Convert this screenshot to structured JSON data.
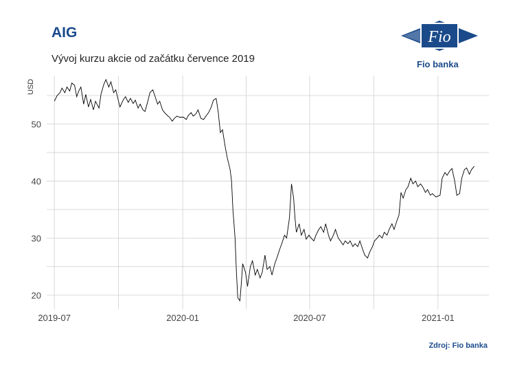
{
  "header": {
    "title": "AIG",
    "subtitle": "Vývoj kurzu akcie od začátku července 2019"
  },
  "brand": {
    "logo_mark": "Fio",
    "name": "Fio banka",
    "color": "#1a4a8a"
  },
  "footer": {
    "source": "Zdroj: Fio banka"
  },
  "chart_data": {
    "type": "line",
    "ylabel": "USD",
    "xlim": [
      "2019-06-20",
      "2021-03-15"
    ],
    "ylim": [
      17.5,
      58.5
    ],
    "y_ticks": [
      20,
      30,
      40,
      50
    ],
    "x_ticks": [
      {
        "date": "2019-07-01",
        "label": "2019-07"
      },
      {
        "date": "2020-01-01",
        "label": "2020-01"
      },
      {
        "date": "2020-07-01",
        "label": "2020-07"
      },
      {
        "date": "2021-01-01",
        "label": "2021-01"
      }
    ],
    "grid": true,
    "line_color": "#000000",
    "series": [
      {
        "points": [
          [
            "2019-07-01",
            54.0
          ],
          [
            "2019-07-05",
            55.0
          ],
          [
            "2019-07-09",
            55.5
          ],
          [
            "2019-07-12",
            56.3
          ],
          [
            "2019-07-16",
            55.5
          ],
          [
            "2019-07-19",
            56.5
          ],
          [
            "2019-07-23",
            55.8
          ],
          [
            "2019-07-26",
            57.2
          ],
          [
            "2019-07-30",
            56.8
          ],
          [
            "2019-08-02",
            54.8
          ],
          [
            "2019-08-05",
            55.8
          ],
          [
            "2019-08-08",
            56.5
          ],
          [
            "2019-08-12",
            53.5
          ],
          [
            "2019-08-15",
            55.2
          ],
          [
            "2019-08-19",
            53.0
          ],
          [
            "2019-08-22",
            54.3
          ],
          [
            "2019-08-26",
            52.5
          ],
          [
            "2019-08-29",
            54.0
          ],
          [
            "2019-09-03",
            52.8
          ],
          [
            "2019-09-06",
            55.3
          ],
          [
            "2019-09-10",
            57.0
          ],
          [
            "2019-09-13",
            57.8
          ],
          [
            "2019-09-17",
            56.5
          ],
          [
            "2019-09-20",
            57.4
          ],
          [
            "2019-09-24",
            55.5
          ],
          [
            "2019-09-27",
            56.0
          ],
          [
            "2019-10-01",
            54.0
          ],
          [
            "2019-10-03",
            53.0
          ],
          [
            "2019-10-08",
            54.3
          ],
          [
            "2019-10-11",
            54.8
          ],
          [
            "2019-10-15",
            53.8
          ],
          [
            "2019-10-18",
            54.5
          ],
          [
            "2019-10-22",
            53.6
          ],
          [
            "2019-10-25",
            54.2
          ],
          [
            "2019-10-29",
            52.8
          ],
          [
            "2019-11-01",
            53.5
          ],
          [
            "2019-11-05",
            52.5
          ],
          [
            "2019-11-08",
            52.2
          ],
          [
            "2019-11-12",
            54.0
          ],
          [
            "2019-11-15",
            55.5
          ],
          [
            "2019-11-19",
            56.0
          ],
          [
            "2019-11-22",
            55.0
          ],
          [
            "2019-11-26",
            53.5
          ],
          [
            "2019-11-29",
            54.0
          ],
          [
            "2019-12-03",
            52.5
          ],
          [
            "2019-12-06",
            52.0
          ],
          [
            "2019-12-10",
            51.5
          ],
          [
            "2019-12-13",
            51.2
          ],
          [
            "2019-12-17",
            50.5
          ],
          [
            "2019-12-20",
            51.0
          ],
          [
            "2019-12-24",
            51.4
          ],
          [
            "2019-12-27",
            51.2
          ],
          [
            "2020-01-02",
            51.2
          ],
          [
            "2020-01-06",
            50.8
          ],
          [
            "2020-01-09",
            51.5
          ],
          [
            "2020-01-13",
            52.0
          ],
          [
            "2020-01-16",
            51.4
          ],
          [
            "2020-01-20",
            51.8
          ],
          [
            "2020-01-23",
            52.5
          ],
          [
            "2020-01-27",
            51.0
          ],
          [
            "2020-01-31",
            50.8
          ],
          [
            "2020-02-04",
            51.5
          ],
          [
            "2020-02-07",
            52.0
          ],
          [
            "2020-02-11",
            53.0
          ],
          [
            "2020-02-14",
            54.2
          ],
          [
            "2020-02-18",
            54.5
          ],
          [
            "2020-02-21",
            52.0
          ],
          [
            "2020-02-24",
            48.5
          ],
          [
            "2020-02-27",
            49.0
          ],
          [
            "2020-03-02",
            46.0
          ],
          [
            "2020-03-05",
            44.0
          ],
          [
            "2020-03-09",
            42.0
          ],
          [
            "2020-03-11",
            40.0
          ],
          [
            "2020-03-13",
            35.0
          ],
          [
            "2020-03-16",
            30.0
          ],
          [
            "2020-03-18",
            24.0
          ],
          [
            "2020-03-20",
            19.5
          ],
          [
            "2020-03-23",
            19.0
          ],
          [
            "2020-03-25",
            22.0
          ],
          [
            "2020-03-27",
            25.5
          ],
          [
            "2020-03-31",
            24.0
          ],
          [
            "2020-04-03",
            21.5
          ],
          [
            "2020-04-07",
            25.0
          ],
          [
            "2020-04-10",
            26.0
          ],
          [
            "2020-04-14",
            23.5
          ],
          [
            "2020-04-17",
            24.5
          ],
          [
            "2020-04-21",
            23.0
          ],
          [
            "2020-04-24",
            24.0
          ],
          [
            "2020-04-28",
            27.0
          ],
          [
            "2020-05-01",
            24.5
          ],
          [
            "2020-05-05",
            25.0
          ],
          [
            "2020-05-08",
            23.5
          ],
          [
            "2020-05-12",
            25.5
          ],
          [
            "2020-05-15",
            26.5
          ],
          [
            "2020-05-19",
            28.0
          ],
          [
            "2020-05-22",
            29.0
          ],
          [
            "2020-05-26",
            30.5
          ],
          [
            "2020-05-29",
            30.0
          ],
          [
            "2020-06-02",
            33.5
          ],
          [
            "2020-06-05",
            39.5
          ],
          [
            "2020-06-08",
            37.0
          ],
          [
            "2020-06-10",
            33.5
          ],
          [
            "2020-06-12",
            31.0
          ],
          [
            "2020-06-16",
            32.5
          ],
          [
            "2020-06-19",
            30.5
          ],
          [
            "2020-06-23",
            31.5
          ],
          [
            "2020-06-26",
            29.8
          ],
          [
            "2020-06-30",
            30.5
          ],
          [
            "2020-07-03",
            30.0
          ],
          [
            "2020-07-07",
            29.5
          ],
          [
            "2020-07-10",
            30.5
          ],
          [
            "2020-07-14",
            31.5
          ],
          [
            "2020-07-17",
            32.0
          ],
          [
            "2020-07-21",
            31.0
          ],
          [
            "2020-07-24",
            32.5
          ],
          [
            "2020-07-28",
            30.5
          ],
          [
            "2020-07-31",
            29.5
          ],
          [
            "2020-08-04",
            30.5
          ],
          [
            "2020-08-07",
            31.5
          ],
          [
            "2020-08-11",
            30.0
          ],
          [
            "2020-08-14",
            29.5
          ],
          [
            "2020-08-18",
            28.8
          ],
          [
            "2020-08-21",
            29.5
          ],
          [
            "2020-08-25",
            29.0
          ],
          [
            "2020-08-28",
            29.5
          ],
          [
            "2020-09-01",
            28.5
          ],
          [
            "2020-09-04",
            29.0
          ],
          [
            "2020-09-08",
            28.5
          ],
          [
            "2020-09-11",
            29.5
          ],
          [
            "2020-09-15",
            28.0
          ],
          [
            "2020-09-18",
            27.0
          ],
          [
            "2020-09-22",
            26.5
          ],
          [
            "2020-09-25",
            27.5
          ],
          [
            "2020-09-29",
            28.5
          ],
          [
            "2020-10-02",
            29.5
          ],
          [
            "2020-10-06",
            30.0
          ],
          [
            "2020-10-09",
            30.5
          ],
          [
            "2020-10-13",
            30.0
          ],
          [
            "2020-10-16",
            31.0
          ],
          [
            "2020-10-20",
            30.5
          ],
          [
            "2020-10-23",
            31.5
          ],
          [
            "2020-10-27",
            32.5
          ],
          [
            "2020-10-30",
            31.5
          ],
          [
            "2020-11-03",
            33.0
          ],
          [
            "2020-11-06",
            34.0
          ],
          [
            "2020-11-09",
            38.0
          ],
          [
            "2020-11-12",
            37.0
          ],
          [
            "2020-11-16",
            38.5
          ],
          [
            "2020-11-19",
            39.0
          ],
          [
            "2020-11-23",
            40.5
          ],
          [
            "2020-11-26",
            39.5
          ],
          [
            "2020-11-30",
            40.0
          ],
          [
            "2020-12-03",
            39.0
          ],
          [
            "2020-12-07",
            39.5
          ],
          [
            "2020-12-10",
            39.0
          ],
          [
            "2020-12-14",
            38.0
          ],
          [
            "2020-12-17",
            38.5
          ],
          [
            "2020-12-21",
            37.5
          ],
          [
            "2020-12-24",
            37.8
          ],
          [
            "2020-12-29",
            37.2
          ],
          [
            "2021-01-04",
            37.5
          ],
          [
            "2021-01-07",
            40.5
          ],
          [
            "2021-01-11",
            41.5
          ],
          [
            "2021-01-14",
            41.0
          ],
          [
            "2021-01-18",
            41.8
          ],
          [
            "2021-01-21",
            42.2
          ],
          [
            "2021-01-25",
            40.0
          ],
          [
            "2021-01-28",
            37.5
          ],
          [
            "2021-02-01",
            37.8
          ],
          [
            "2021-02-04",
            40.5
          ],
          [
            "2021-02-08",
            42.0
          ],
          [
            "2021-02-11",
            42.3
          ],
          [
            "2021-02-15",
            41.2
          ],
          [
            "2021-02-18",
            42.0
          ],
          [
            "2021-02-22",
            42.6
          ]
        ]
      }
    ]
  }
}
